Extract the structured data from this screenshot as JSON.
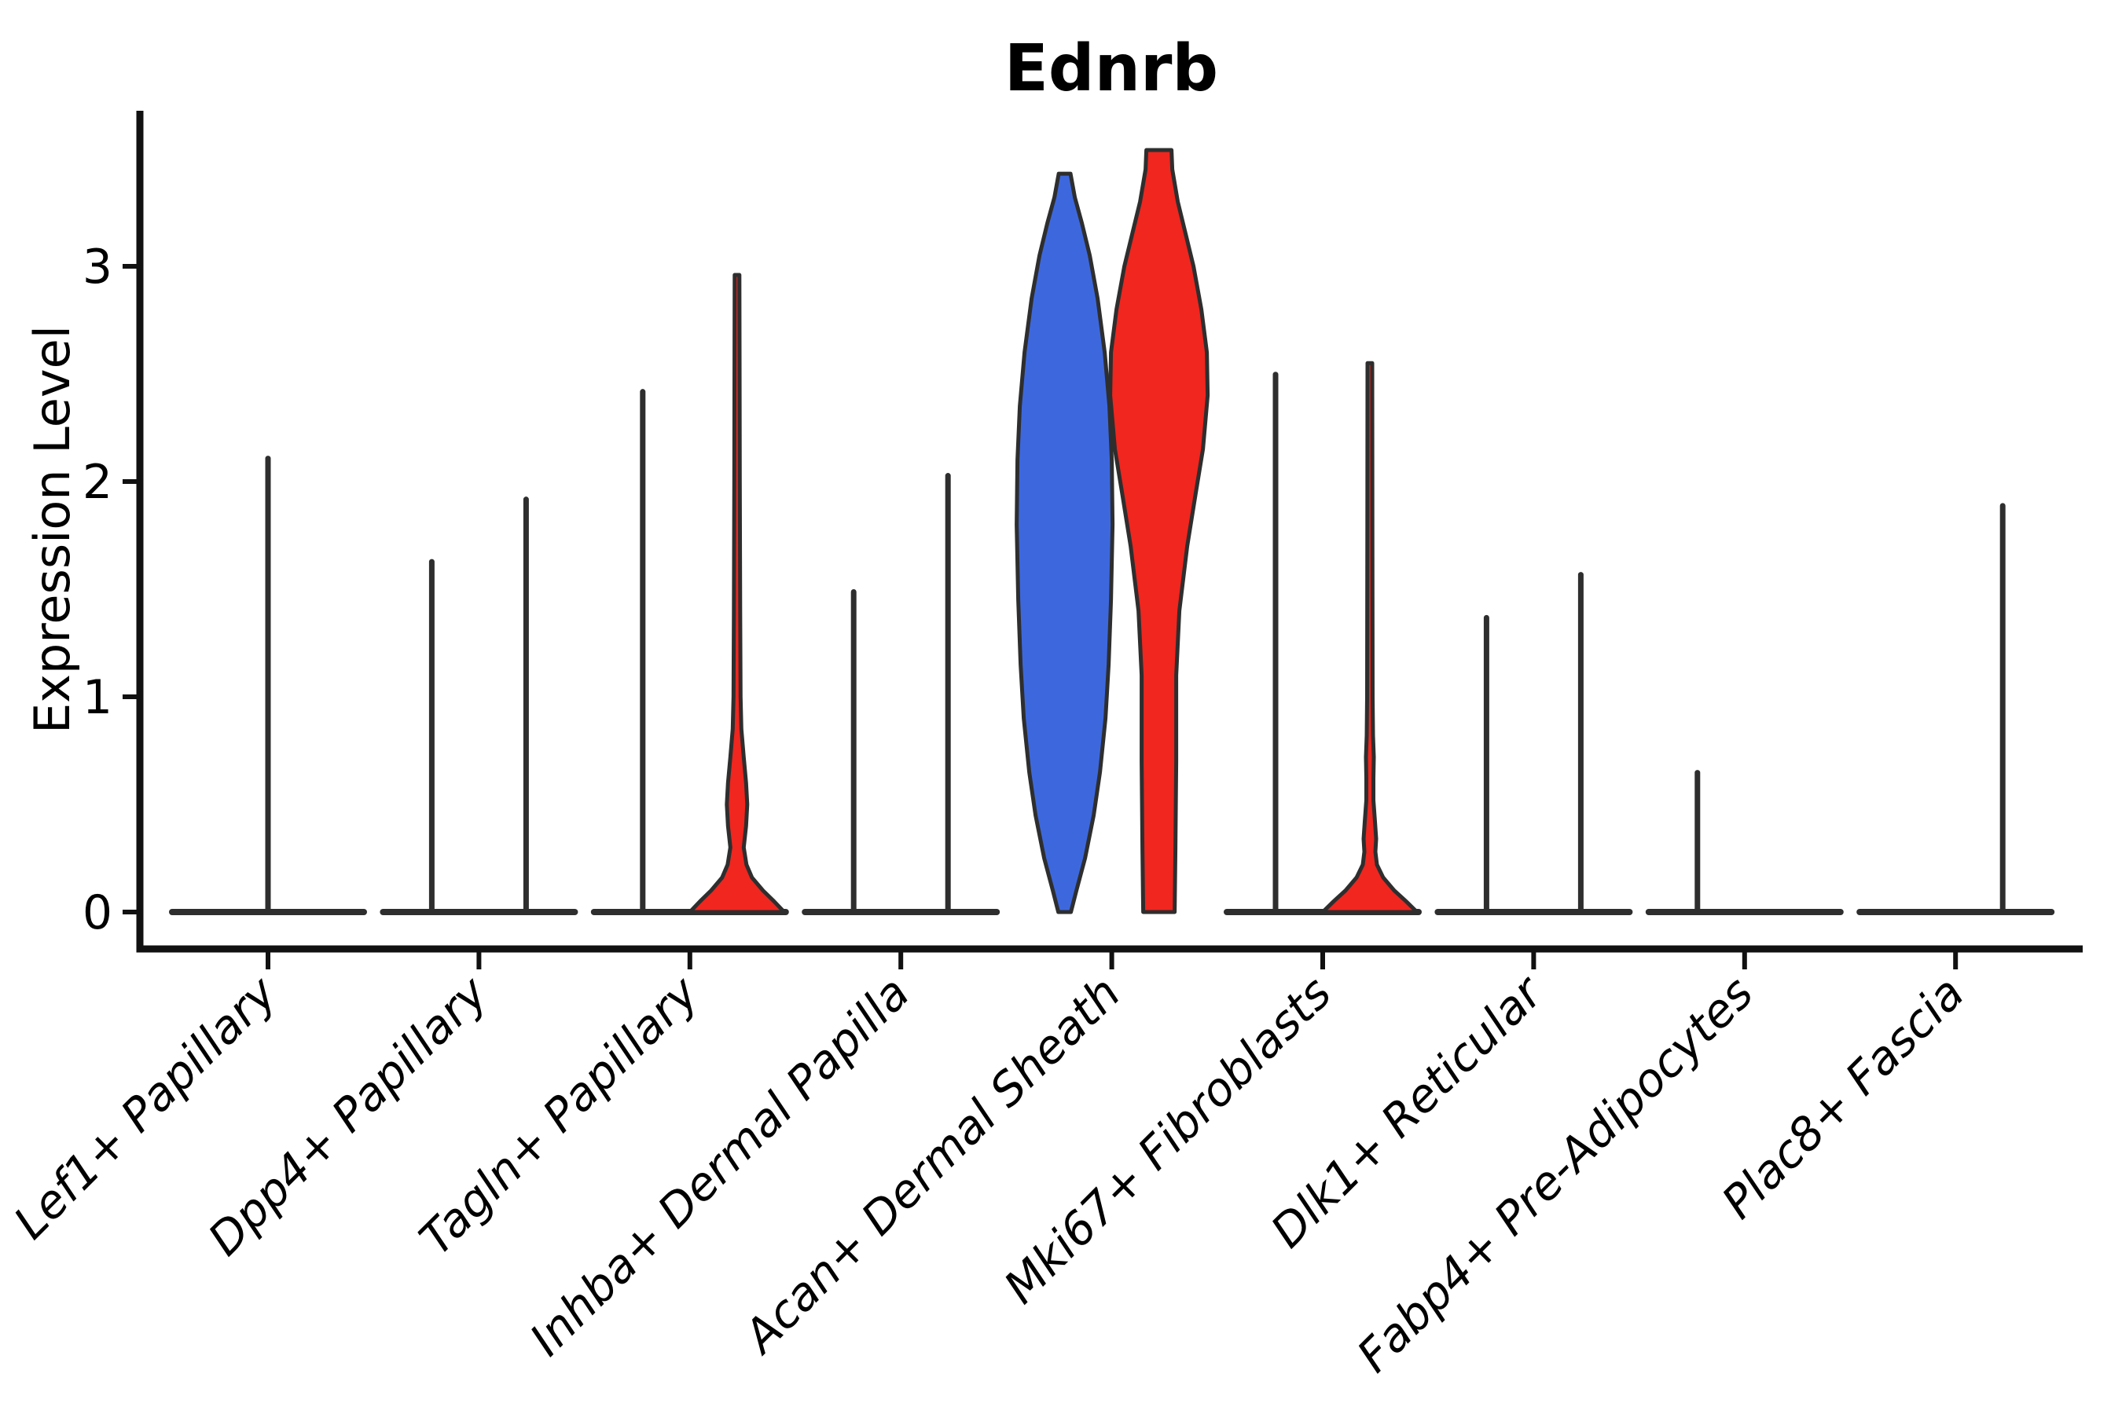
{
  "title": "Ednrb",
  "axes": {
    "ylabel": "Expression Level",
    "ytick_labels": [
      "0",
      "1",
      "2",
      "3"
    ],
    "ytick_values": [
      0,
      1,
      2,
      3
    ]
  },
  "colors": {
    "blue_fill": "#3D68DD",
    "red_fill": "#F0261F",
    "outline": "#2E2E2E",
    "axis": "#111111",
    "background": "#FFFFFF"
  },
  "chart_data": {
    "type": "violin",
    "title": "Ednrb",
    "ylabel": "Expression Level",
    "ylim": [
      0,
      3.7
    ],
    "grid": false,
    "legend": "none (split violins colored blue and red, no legend shown)",
    "split_colors": {
      "blue": "#3D68DD",
      "red": "#F0261F"
    },
    "categories": [
      {
        "label": "Lef1+ Papillary",
        "baseline": true,
        "violins": [
          {
            "group": "single",
            "offset": 0,
            "kind": "spike",
            "max": 2.12
          }
        ]
      },
      {
        "label": "Dpp4+ Papillary",
        "baseline": true,
        "violins": [
          {
            "group": "blue",
            "offset": -60,
            "kind": "spike",
            "max": 1.64
          },
          {
            "group": "red",
            "offset": 60,
            "kind": "spike",
            "max": 1.93
          }
        ]
      },
      {
        "label": "Tagln+ Papillary",
        "baseline": true,
        "violins": [
          {
            "group": "blue",
            "offset": -60,
            "kind": "spike",
            "max": 2.43
          },
          {
            "group": "red",
            "offset": 60,
            "kind": "violin",
            "max": 2.96,
            "fill": "red",
            "profile": [
              [
                0,
                60
              ],
              [
                0.05,
                47
              ],
              [
                0.1,
                33
              ],
              [
                0.16,
                19
              ],
              [
                0.22,
                12
              ],
              [
                0.3,
                8.5
              ],
              [
                0.4,
                11.5
              ],
              [
                0.5,
                13
              ],
              [
                0.6,
                11.5
              ],
              [
                0.72,
                8.5
              ],
              [
                0.85,
                5.5
              ],
              [
                1.0,
                4.5
              ],
              [
                1.4,
                4
              ],
              [
                2.0,
                3.5
              ],
              [
                2.6,
                3.2
              ],
              [
                2.96,
                3
              ]
            ]
          }
        ]
      },
      {
        "label": "Inhba+ Dermal Papilla",
        "baseline": true,
        "violins": [
          {
            "group": "blue",
            "offset": -60,
            "kind": "spike",
            "max": 1.5
          },
          {
            "group": "red",
            "offset": 60,
            "kind": "spike",
            "max": 2.04
          }
        ]
      },
      {
        "label": "Acan+ Dermal Sheath",
        "baseline": false,
        "violins": [
          {
            "group": "blue",
            "offset": -60,
            "kind": "violin",
            "max": 3.43,
            "fill": "blue",
            "profile": [
              [
                0,
                8
              ],
              [
                0.1,
                15
              ],
              [
                0.25,
                26
              ],
              [
                0.45,
                37
              ],
              [
                0.65,
                45
              ],
              [
                0.9,
                52
              ],
              [
                1.15,
                56
              ],
              [
                1.45,
                59
              ],
              [
                1.8,
                61
              ],
              [
                2.1,
                60
              ],
              [
                2.35,
                57
              ],
              [
                2.6,
                51
              ],
              [
                2.85,
                42
              ],
              [
                3.05,
                32
              ],
              [
                3.2,
                22
              ],
              [
                3.32,
                13
              ],
              [
                3.43,
                7.5
              ]
            ]
          },
          {
            "group": "red",
            "offset": 60,
            "kind": "violin",
            "max": 3.54,
            "fill": "red",
            "profile": [
              [
                0,
                20
              ],
              [
                0.3,
                21
              ],
              [
                0.7,
                22
              ],
              [
                1.1,
                22
              ],
              [
                1.4,
                26
              ],
              [
                1.7,
                36
              ],
              [
                1.95,
                47
              ],
              [
                2.15,
                56
              ],
              [
                2.4,
                62
              ],
              [
                2.6,
                61
              ],
              [
                2.8,
                54
              ],
              [
                3.0,
                44
              ],
              [
                3.15,
                34
              ],
              [
                3.3,
                24
              ],
              [
                3.45,
                17
              ],
              [
                3.54,
                16
              ]
            ]
          }
        ]
      },
      {
        "label": "Mki67+ Fibroblasts",
        "baseline": true,
        "violins": [
          {
            "group": "blue",
            "offset": -60,
            "kind": "spike",
            "max": 2.51
          },
          {
            "group": "red",
            "offset": 60,
            "kind": "violin",
            "max": 2.55,
            "fill": "red",
            "profile": [
              [
                0,
                60
              ],
              [
                0.05,
                46
              ],
              [
                0.1,
                31
              ],
              [
                0.16,
                17
              ],
              [
                0.22,
                9
              ],
              [
                0.28,
                7
              ],
              [
                0.34,
                8
              ],
              [
                0.42,
                6.5
              ],
              [
                0.52,
                4.5
              ],
              [
                0.62,
                4.5
              ],
              [
                0.72,
                5
              ],
              [
                0.82,
                4
              ],
              [
                1.0,
                3.5
              ],
              [
                1.8,
                3.2
              ],
              [
                2.55,
                3
              ]
            ]
          }
        ]
      },
      {
        "label": "Dlk1+ Reticular",
        "baseline": true,
        "violins": [
          {
            "group": "blue",
            "offset": -60,
            "kind": "spike",
            "max": 1.38
          },
          {
            "group": "red",
            "offset": 60,
            "kind": "spike",
            "max": 1.58
          }
        ]
      },
      {
        "label": "Fabp4+ Pre-Adipocytes",
        "baseline": true,
        "violins": [
          {
            "group": "blue",
            "offset": -60,
            "kind": "spike",
            "max": 0.66
          }
        ]
      },
      {
        "label": "Plac8+ Fascia",
        "baseline": true,
        "violins": [
          {
            "group": "red",
            "offset": 60,
            "kind": "spike",
            "max": 1.9
          }
        ]
      }
    ]
  }
}
